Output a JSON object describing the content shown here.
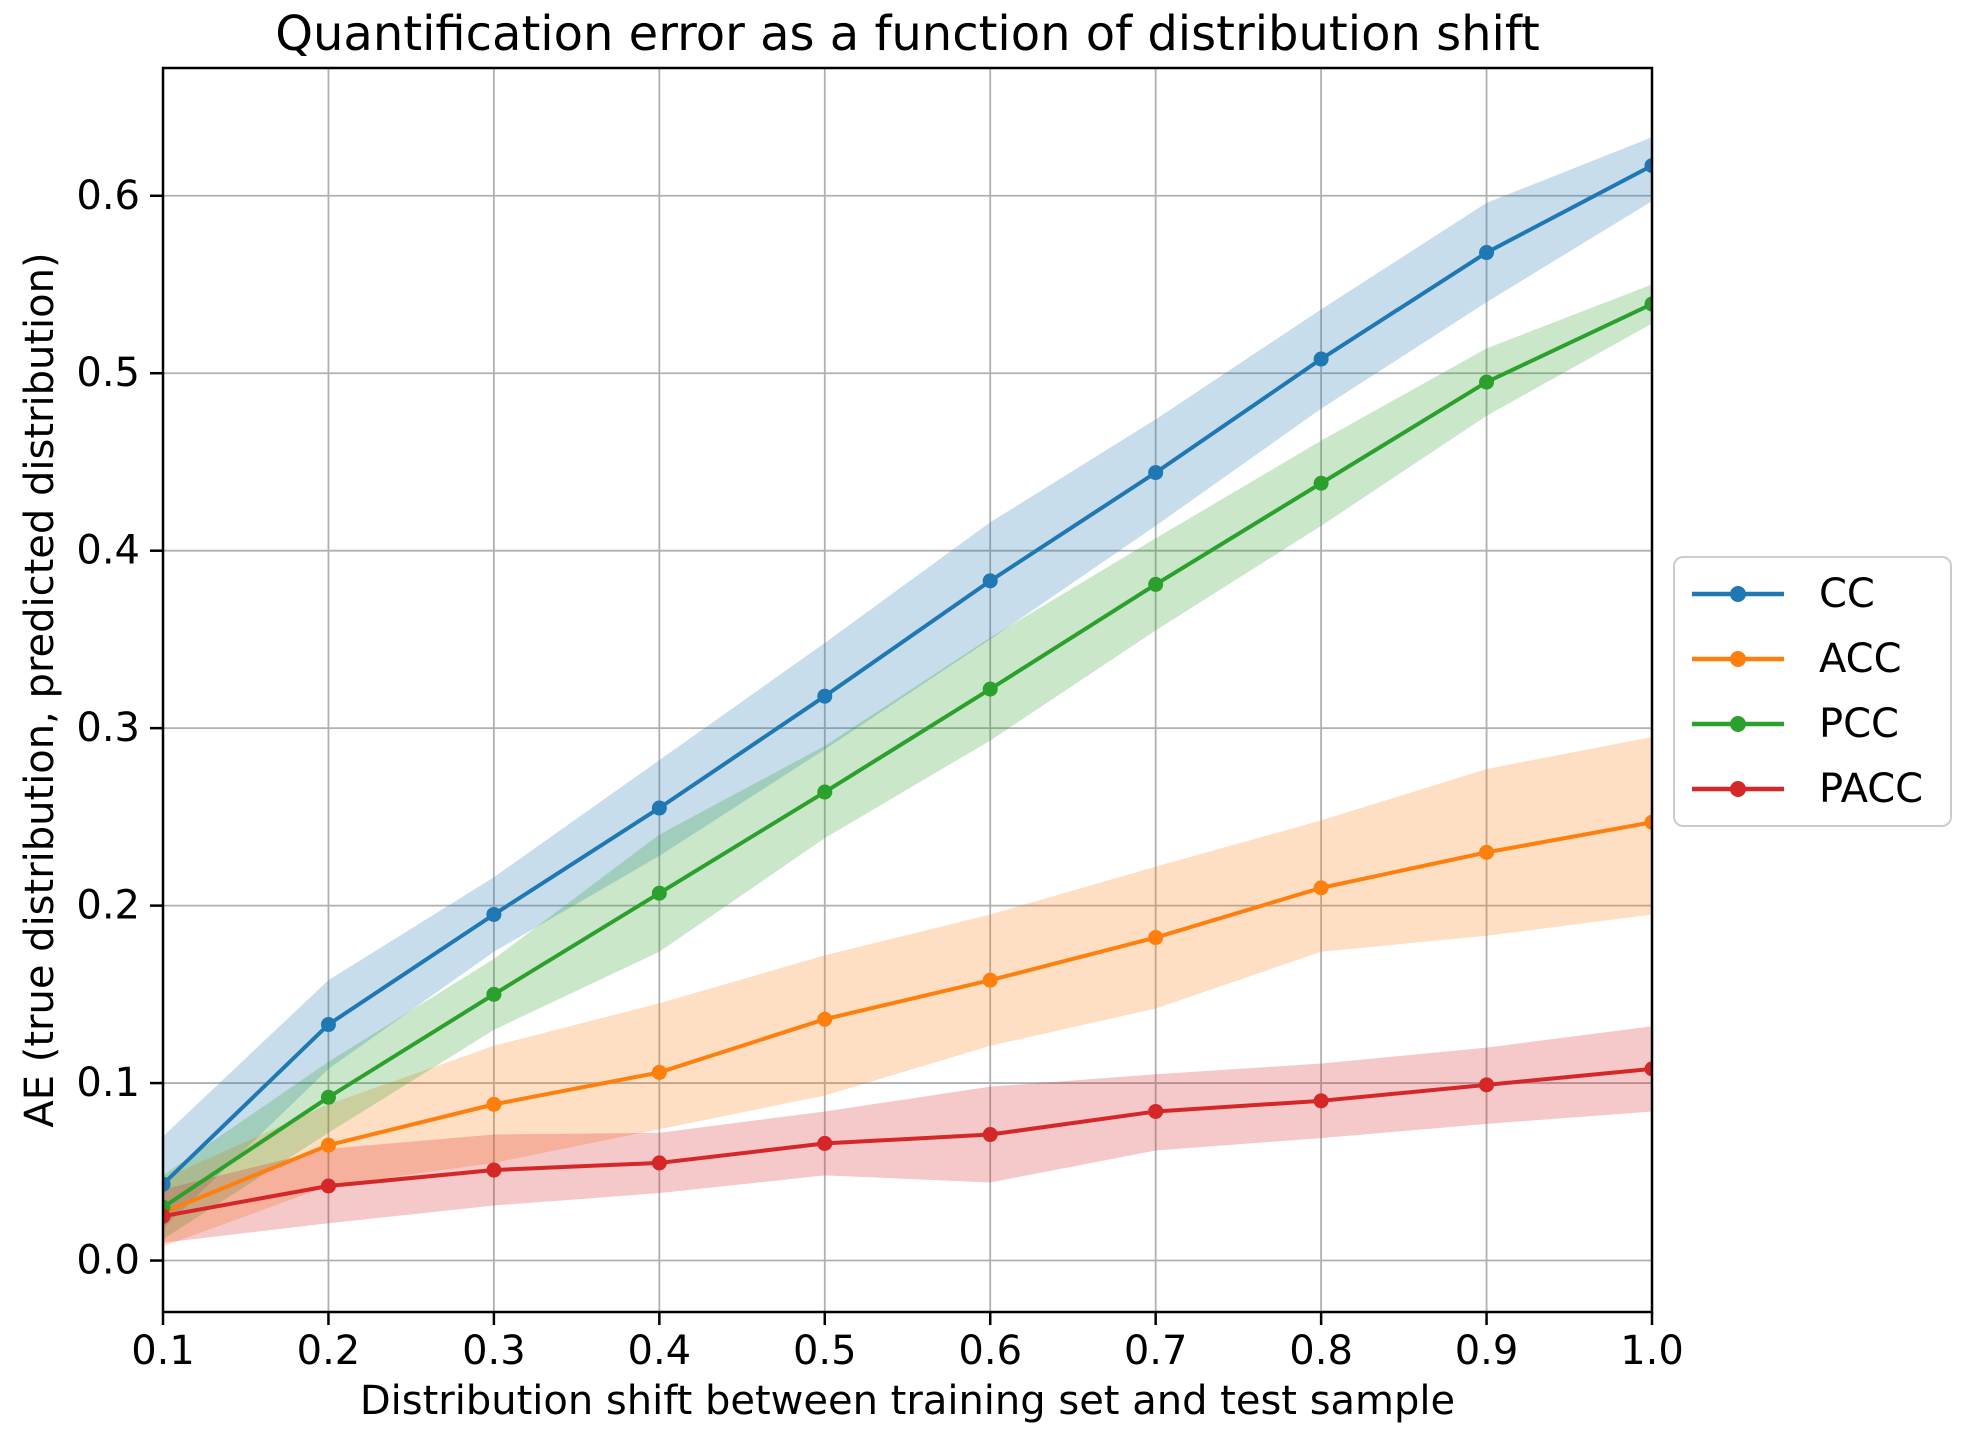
{
  "chart_data": {
    "type": "line",
    "title": "Quantification error as a function of distribution shift",
    "xlabel": "Distribution shift between training set and test sample",
    "ylabel": "AE (true distribution, predicted distribution)",
    "x": [
      0.1,
      0.2,
      0.3,
      0.4,
      0.5,
      0.6,
      0.7,
      0.8,
      0.9,
      1.0
    ],
    "xlim": [
      0.1,
      1.0
    ],
    "ylim": [
      -0.029,
      0.672
    ],
    "xtick_values": [
      0.1,
      0.2,
      0.3,
      0.4,
      0.5,
      0.6,
      0.7,
      0.8,
      0.9,
      1.0
    ],
    "xtick_labels": [
      "0.1",
      "0.2",
      "0.3",
      "0.4",
      "0.5",
      "0.6",
      "0.7",
      "0.8",
      "0.9",
      "1.0"
    ],
    "ytick_values": [
      0.0,
      0.1,
      0.2,
      0.3,
      0.4,
      0.5,
      0.6
    ],
    "ytick_labels": [
      "0.0",
      "0.1",
      "0.2",
      "0.3",
      "0.4",
      "0.5",
      "0.6"
    ],
    "grid": true,
    "legend_position": "center-right-outside",
    "marker": "circle",
    "band_opacity": 0.25,
    "colors": {
      "background": "#ffffff",
      "grid": "#b0b0b0",
      "frame": "#000000",
      "text": "#000000"
    },
    "series": [
      {
        "name": "CC",
        "color": "#1f77b4",
        "values": [
          0.043,
          0.133,
          0.195,
          0.255,
          0.318,
          0.383,
          0.444,
          0.508,
          0.568,
          0.617
        ],
        "band_lower": [
          0.018,
          0.108,
          0.174,
          0.228,
          0.288,
          0.35,
          0.414,
          0.48,
          0.54,
          0.597
        ],
        "band_upper": [
          0.07,
          0.158,
          0.216,
          0.282,
          0.348,
          0.416,
          0.474,
          0.536,
          0.596,
          0.633
        ]
      },
      {
        "name": "ACC",
        "color": "#ff7f0e",
        "values": [
          0.027,
          0.065,
          0.088,
          0.106,
          0.136,
          0.158,
          0.182,
          0.21,
          0.23,
          0.247
        ],
        "band_lower": [
          0.008,
          0.042,
          0.055,
          0.074,
          0.093,
          0.121,
          0.142,
          0.174,
          0.183,
          0.195
        ],
        "band_upper": [
          0.046,
          0.088,
          0.121,
          0.145,
          0.172,
          0.195,
          0.222,
          0.248,
          0.277,
          0.295
        ]
      },
      {
        "name": "PCC",
        "color": "#2ca02c",
        "values": [
          0.03,
          0.092,
          0.15,
          0.207,
          0.264,
          0.322,
          0.381,
          0.438,
          0.495,
          0.539
        ],
        "band_lower": [
          0.012,
          0.072,
          0.13,
          0.174,
          0.238,
          0.293,
          0.355,
          0.414,
          0.476,
          0.528
        ],
        "band_upper": [
          0.048,
          0.112,
          0.17,
          0.24,
          0.29,
          0.351,
          0.407,
          0.462,
          0.514,
          0.55
        ]
      },
      {
        "name": "PACC",
        "color": "#d62728",
        "values": [
          0.025,
          0.042,
          0.051,
          0.055,
          0.066,
          0.071,
          0.084,
          0.09,
          0.099,
          0.108
        ],
        "band_lower": [
          0.01,
          0.021,
          0.031,
          0.038,
          0.048,
          0.044,
          0.062,
          0.069,
          0.077,
          0.084
        ],
        "band_upper": [
          0.04,
          0.063,
          0.071,
          0.072,
          0.084,
          0.098,
          0.105,
          0.111,
          0.12,
          0.132
        ]
      }
    ]
  }
}
